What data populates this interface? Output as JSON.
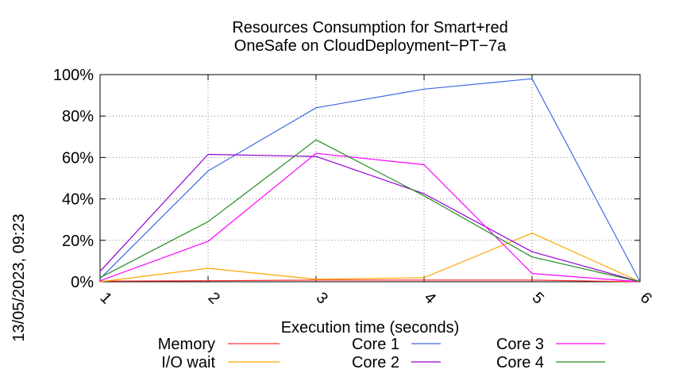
{
  "chart_data": {
    "type": "line",
    "title": [
      "Resources Consumption for Smart+red",
      "OneSafe on CloudDeployment−PT−7a"
    ],
    "xlabel": "Execution time (seconds)",
    "ylabel": "",
    "side_label": "13/05/2023, 09:23",
    "x": [
      1,
      2,
      3,
      4,
      5,
      6
    ],
    "x_tick_labels": [
      "1",
      "2",
      "3",
      "4",
      "5",
      "6"
    ],
    "xlim": [
      1,
      6
    ],
    "ylim": [
      0,
      100
    ],
    "y_ticks": [
      0,
      20,
      40,
      60,
      80,
      100
    ],
    "y_tick_labels": [
      "0%",
      "20%",
      "40%",
      "60%",
      "80%",
      "100%"
    ],
    "grid": true,
    "legend_position": "bottom",
    "series": [
      {
        "name": "Memory",
        "color": "#ff3030",
        "values": [
          0.3,
          0.5,
          0.8,
          0.8,
          0.8,
          0
        ]
      },
      {
        "name": "I/O wait",
        "color": "#ffa500",
        "values": [
          0,
          6.5,
          1.2,
          2,
          23.5,
          0
        ]
      },
      {
        "name": "Core 1",
        "color": "#4169e1",
        "values": [
          1.5,
          53.5,
          84,
          93,
          98,
          0
        ]
      },
      {
        "name": "Core 2",
        "color": "#9400d3",
        "values": [
          5,
          61.5,
          60.5,
          42.5,
          14.5,
          0
        ]
      },
      {
        "name": "Core 3",
        "color": "#ff00ff",
        "values": [
          0.5,
          19.5,
          62,
          56.5,
          4,
          0
        ]
      },
      {
        "name": "Core 4",
        "color": "#228b22",
        "values": [
          2,
          29,
          68.5,
          41.5,
          12,
          0
        ]
      }
    ]
  }
}
